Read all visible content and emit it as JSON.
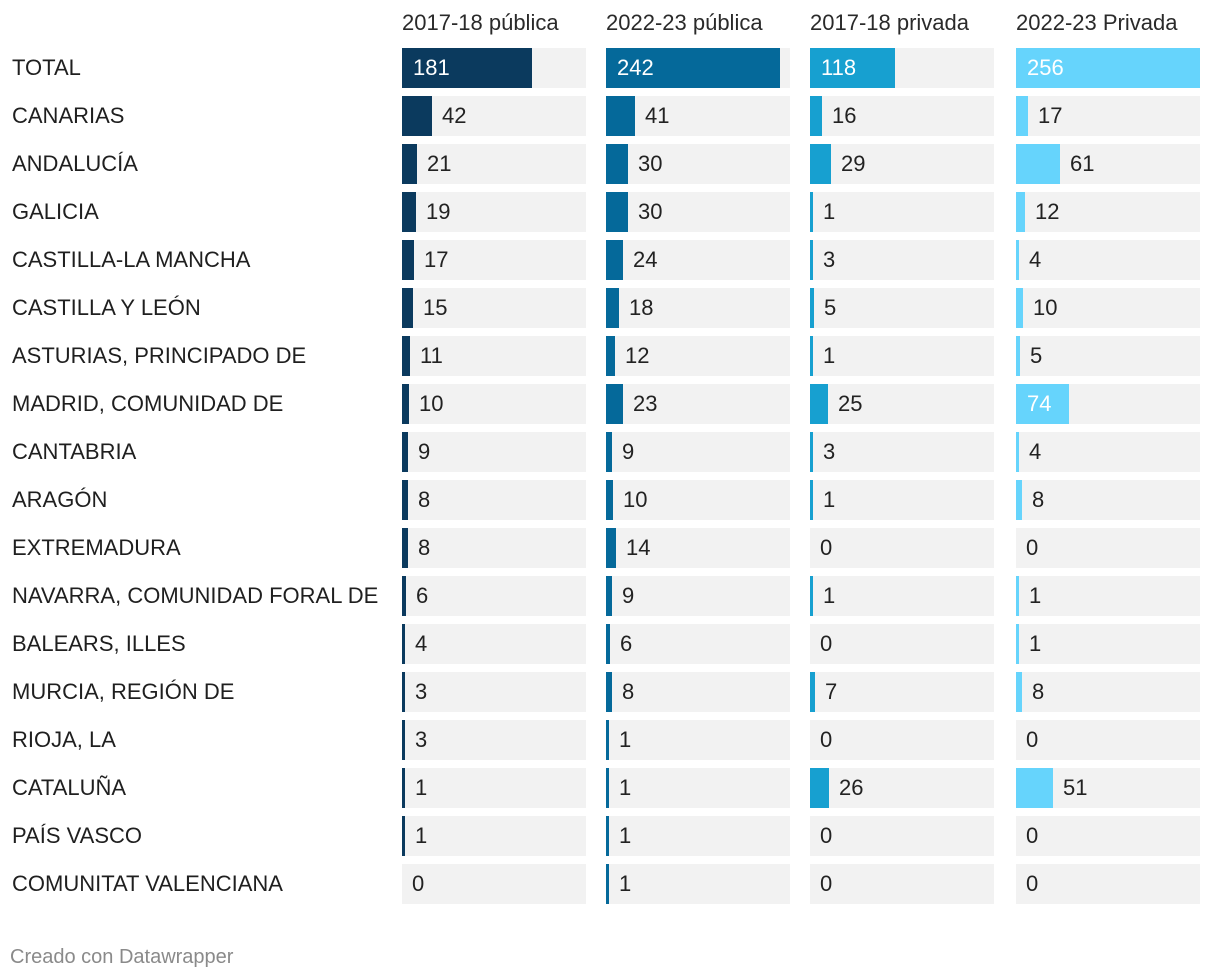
{
  "chart_data": {
    "type": "bar",
    "columns": [
      {
        "name": "2017-18 pública",
        "color": "#0b3a5e"
      },
      {
        "name": "2022-23 pública",
        "color": "#05699a"
      },
      {
        "name": "2017-18 privada",
        "color": "#17a0d0"
      },
      {
        "name": "2022-23 Privada",
        "color": "#66d4fc"
      }
    ],
    "categories": [
      "TOTAL",
      "CANARIAS",
      "ANDALUCÍA",
      "GALICIA",
      "CASTILLA-LA MANCHA",
      "CASTILLA Y LEÓN",
      "ASTURIAS, PRINCIPADO DE",
      "MADRID, COMUNIDAD DE",
      "CANTABRIA",
      "ARAGÓN",
      "EXTREMADURA",
      "NAVARRA, COMUNIDAD FORAL DE",
      "BALEARS, ILLES",
      "MURCIA, REGIÓN DE",
      "RIOJA, LA",
      "CATALUÑA",
      "PAÍS VASCO",
      "COMUNITAT VALENCIANA"
    ],
    "series": [
      {
        "name": "2017-18 pública",
        "values": [
          181,
          42,
          21,
          19,
          17,
          15,
          11,
          10,
          9,
          8,
          8,
          6,
          4,
          3,
          3,
          1,
          1,
          0
        ]
      },
      {
        "name": "2022-23 pública",
        "values": [
          242,
          41,
          30,
          30,
          24,
          18,
          12,
          23,
          9,
          10,
          14,
          9,
          6,
          8,
          1,
          1,
          1,
          1
        ]
      },
      {
        "name": "2017-18 privada",
        "values": [
          118,
          16,
          29,
          1,
          3,
          5,
          1,
          25,
          3,
          1,
          0,
          1,
          0,
          7,
          0,
          26,
          0,
          0
        ]
      },
      {
        "name": "2022-23 Privada",
        "values": [
          256,
          17,
          61,
          12,
          4,
          10,
          5,
          74,
          4,
          8,
          0,
          1,
          1,
          8,
          0,
          51,
          0,
          0
        ]
      }
    ],
    "xlim": [
      0,
      256
    ],
    "legend": "column-headers"
  },
  "footer": {
    "credit": "Creado con Datawrapper"
  }
}
